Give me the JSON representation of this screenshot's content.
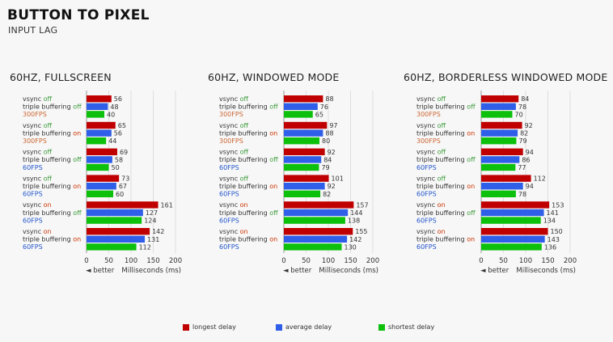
{
  "header": {
    "title": "BUTTON TO PIXEL",
    "subtitle": "INPUT LAG"
  },
  "colors": {
    "longest": "#c00000",
    "average": "#2f5fe8",
    "shortest": "#0cc00c",
    "off": "#3a9a3a",
    "on": "#cc3300",
    "fps300": "#cc6633",
    "fps60": "#2255cc",
    "text": "#333333"
  },
  "common": {
    "better": "◄ better",
    "xlabel": "Milliseconds (ms)",
    "xticks": [
      0,
      50,
      100,
      150,
      200
    ],
    "xlim": [
      0,
      200
    ]
  },
  "legend": [
    {
      "key": "longest",
      "label": "longest delay"
    },
    {
      "key": "average",
      "label": "average delay"
    },
    {
      "key": "shortest",
      "label": "shortest delay"
    }
  ],
  "chart_data": [
    {
      "type": "bar",
      "title": "60HZ, FULLSCREEN",
      "xlabel": "Milliseconds (ms)",
      "xlim": [
        0,
        200
      ],
      "categories": [
        {
          "vsync": "off",
          "triple": "off",
          "fps": "300FPS"
        },
        {
          "vsync": "off",
          "triple": "on",
          "fps": "300FPS"
        },
        {
          "vsync": "off",
          "triple": "off",
          "fps": "60FPS"
        },
        {
          "vsync": "off",
          "triple": "on",
          "fps": "60FPS"
        },
        {
          "vsync": "on",
          "triple": "off",
          "fps": "60FPS"
        },
        {
          "vsync": "on",
          "triple": "on",
          "fps": "60FPS"
        }
      ],
      "series": [
        {
          "name": "longest delay",
          "values": [
            56,
            65,
            69,
            73,
            161,
            142
          ]
        },
        {
          "name": "average delay",
          "values": [
            48,
            56,
            58,
            67,
            127,
            131
          ]
        },
        {
          "name": "shortest delay",
          "values": [
            40,
            44,
            50,
            60,
            124,
            112
          ]
        }
      ]
    },
    {
      "type": "bar",
      "title": "60HZ, WINDOWED MODE",
      "xlabel": "Milliseconds (ms)",
      "xlim": [
        0,
        200
      ],
      "categories": [
        {
          "vsync": "off",
          "triple": "off",
          "fps": "300FPS"
        },
        {
          "vsync": "off",
          "triple": "on",
          "fps": "300FPS"
        },
        {
          "vsync": "off",
          "triple": "off",
          "fps": "60FPS"
        },
        {
          "vsync": "off",
          "triple": "on",
          "fps": "60FPS"
        },
        {
          "vsync": "on",
          "triple": "off",
          "fps": "60FPS"
        },
        {
          "vsync": "on",
          "triple": "on",
          "fps": "60FPS"
        }
      ],
      "series": [
        {
          "name": "longest delay",
          "values": [
            88,
            97,
            92,
            101,
            157,
            155
          ]
        },
        {
          "name": "average delay",
          "values": [
            76,
            88,
            84,
            92,
            144,
            142
          ]
        },
        {
          "name": "shortest delay",
          "values": [
            65,
            80,
            79,
            82,
            138,
            130
          ]
        }
      ]
    },
    {
      "type": "bar",
      "title": "60HZ, BORDERLESS WINDOWED MODE",
      "xlabel": "Milliseconds (ms)",
      "xlim": [
        0,
        200
      ],
      "categories": [
        {
          "vsync": "off",
          "triple": "off",
          "fps": "300FPS"
        },
        {
          "vsync": "off",
          "triple": "on",
          "fps": "300FPS"
        },
        {
          "vsync": "off",
          "triple": "off",
          "fps": "60FPS"
        },
        {
          "vsync": "off",
          "triple": "on",
          "fps": "60FPS"
        },
        {
          "vsync": "on",
          "triple": "off",
          "fps": "60FPS"
        },
        {
          "vsync": "on",
          "triple": "on",
          "fps": "60FPS"
        }
      ],
      "series": [
        {
          "name": "longest delay",
          "values": [
            84,
            92,
            94,
            112,
            153,
            150
          ]
        },
        {
          "name": "average delay",
          "values": [
            78,
            82,
            86,
            94,
            141,
            143
          ]
        },
        {
          "name": "shortest delay",
          "values": [
            70,
            79,
            77,
            78,
            134,
            136
          ]
        }
      ]
    }
  ]
}
